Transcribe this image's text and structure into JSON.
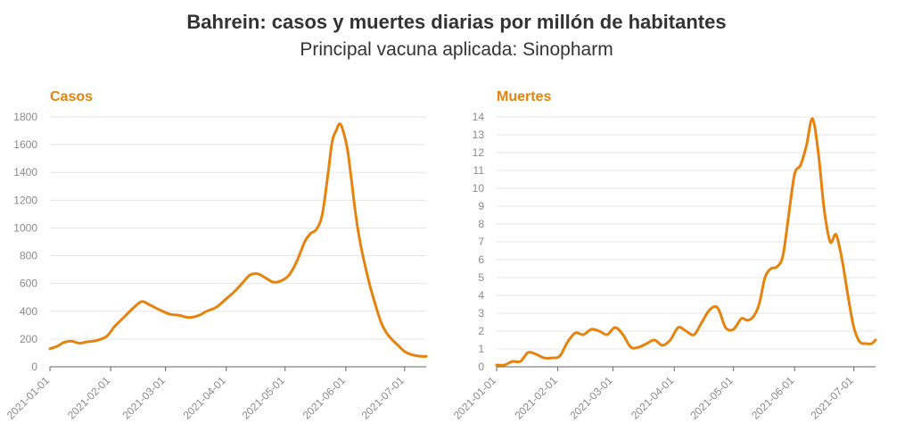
{
  "header": {
    "title": "Bahrein: casos y muertes diarias por millón de habitantes",
    "subtitle": "Principal vacuna aplicada: Sinopharm"
  },
  "colors": {
    "series": "#e5830c"
  },
  "chart_data": [
    {
      "type": "line",
      "title": "Casos",
      "xlabel": "",
      "ylabel": "",
      "xlim": [
        "2021-01-01",
        "2021-07-12"
      ],
      "ylim": [
        0,
        1800
      ],
      "yticks": [
        0,
        200,
        400,
        600,
        800,
        1000,
        1200,
        1400,
        1600,
        1800
      ],
      "xticks": [
        "2021-01-01",
        "2021-02-01",
        "2021-03-01",
        "2021-04-01",
        "2021-05-01",
        "2021-06-01",
        "2021-07-01"
      ],
      "grid": true,
      "series": [
        {
          "x": [
            "2021-01-01",
            "2021-01-05",
            "2021-01-08",
            "2021-01-12",
            "2021-01-16",
            "2021-01-20",
            "2021-01-25",
            "2021-01-30",
            "2021-02-03",
            "2021-02-08",
            "2021-02-13",
            "2021-02-17",
            "2021-02-21",
            "2021-02-26",
            "2021-03-03",
            "2021-03-08",
            "2021-03-13",
            "2021-03-18",
            "2021-03-22",
            "2021-03-27",
            "2021-04-01",
            "2021-04-05",
            "2021-04-09",
            "2021-04-13",
            "2021-04-17",
            "2021-04-21",
            "2021-04-25",
            "2021-04-29",
            "2021-05-03",
            "2021-05-07",
            "2021-05-11",
            "2021-05-14",
            "2021-05-17",
            "2021-05-20",
            "2021-05-23",
            "2021-05-25",
            "2021-05-27",
            "2021-05-29",
            "2021-05-31",
            "2021-06-02",
            "2021-06-04",
            "2021-06-06",
            "2021-06-08",
            "2021-06-10",
            "2021-06-13",
            "2021-06-16",
            "2021-06-19",
            "2021-06-22",
            "2021-06-25",
            "2021-06-28",
            "2021-07-01",
            "2021-07-04",
            "2021-07-07",
            "2021-07-10",
            "2021-07-12"
          ],
          "y": [
            130,
            150,
            175,
            185,
            170,
            180,
            190,
            220,
            290,
            360,
            430,
            470,
            445,
            410,
            380,
            370,
            355,
            370,
            400,
            430,
            490,
            540,
            600,
            660,
            670,
            640,
            610,
            620,
            660,
            760,
            900,
            960,
            990,
            1100,
            1400,
            1620,
            1700,
            1750,
            1680,
            1550,
            1330,
            1100,
            920,
            780,
            600,
            450,
            320,
            240,
            190,
            150,
            110,
            90,
            80,
            75,
            75
          ]
        }
      ]
    },
    {
      "type": "line",
      "title": "Muertes",
      "xlabel": "",
      "ylabel": "",
      "xlim": [
        "2021-01-01",
        "2021-07-12"
      ],
      "ylim": [
        0,
        14
      ],
      "yticks": [
        0,
        1,
        2,
        3,
        4,
        5,
        6,
        7,
        8,
        9,
        10,
        11,
        12,
        13,
        14
      ],
      "xticks": [
        "2021-01-01",
        "2021-02-01",
        "2021-03-01",
        "2021-04-01",
        "2021-05-01",
        "2021-06-01",
        "2021-07-01"
      ],
      "grid": true,
      "series": [
        {
          "x": [
            "2021-01-01",
            "2021-01-05",
            "2021-01-09",
            "2021-01-13",
            "2021-01-17",
            "2021-01-21",
            "2021-01-25",
            "2021-01-29",
            "2021-02-02",
            "2021-02-06",
            "2021-02-10",
            "2021-02-14",
            "2021-02-18",
            "2021-02-22",
            "2021-02-26",
            "2021-03-02",
            "2021-03-06",
            "2021-03-10",
            "2021-03-14",
            "2021-03-18",
            "2021-03-22",
            "2021-03-26",
            "2021-03-30",
            "2021-04-03",
            "2021-04-07",
            "2021-04-11",
            "2021-04-15",
            "2021-04-19",
            "2021-04-23",
            "2021-04-27",
            "2021-05-01",
            "2021-05-05",
            "2021-05-08",
            "2021-05-11",
            "2021-05-14",
            "2021-05-17",
            "2021-05-20",
            "2021-05-23",
            "2021-05-26",
            "2021-05-29",
            "2021-06-01",
            "2021-06-04",
            "2021-06-07",
            "2021-06-10",
            "2021-06-13",
            "2021-06-16",
            "2021-06-19",
            "2021-06-22",
            "2021-06-25",
            "2021-06-28",
            "2021-07-01",
            "2021-07-04",
            "2021-07-07",
            "2021-07-10",
            "2021-07-12"
          ],
          "y": [
            0.1,
            0.1,
            0.3,
            0.3,
            0.8,
            0.7,
            0.5,
            0.5,
            0.6,
            1.4,
            1.9,
            1.8,
            2.1,
            2.0,
            1.8,
            2.2,
            1.8,
            1.1,
            1.1,
            1.3,
            1.5,
            1.2,
            1.5,
            2.2,
            2.0,
            1.8,
            2.5,
            3.2,
            3.3,
            2.2,
            2.1,
            2.7,
            2.6,
            2.8,
            3.5,
            5.0,
            5.5,
            5.6,
            6.2,
            8.5,
            10.8,
            11.3,
            12.4,
            13.9,
            12.0,
            8.8,
            7.0,
            7.4,
            6.0,
            4.0,
            2.2,
            1.4,
            1.3,
            1.3,
            1.5
          ]
        }
      ]
    }
  ]
}
